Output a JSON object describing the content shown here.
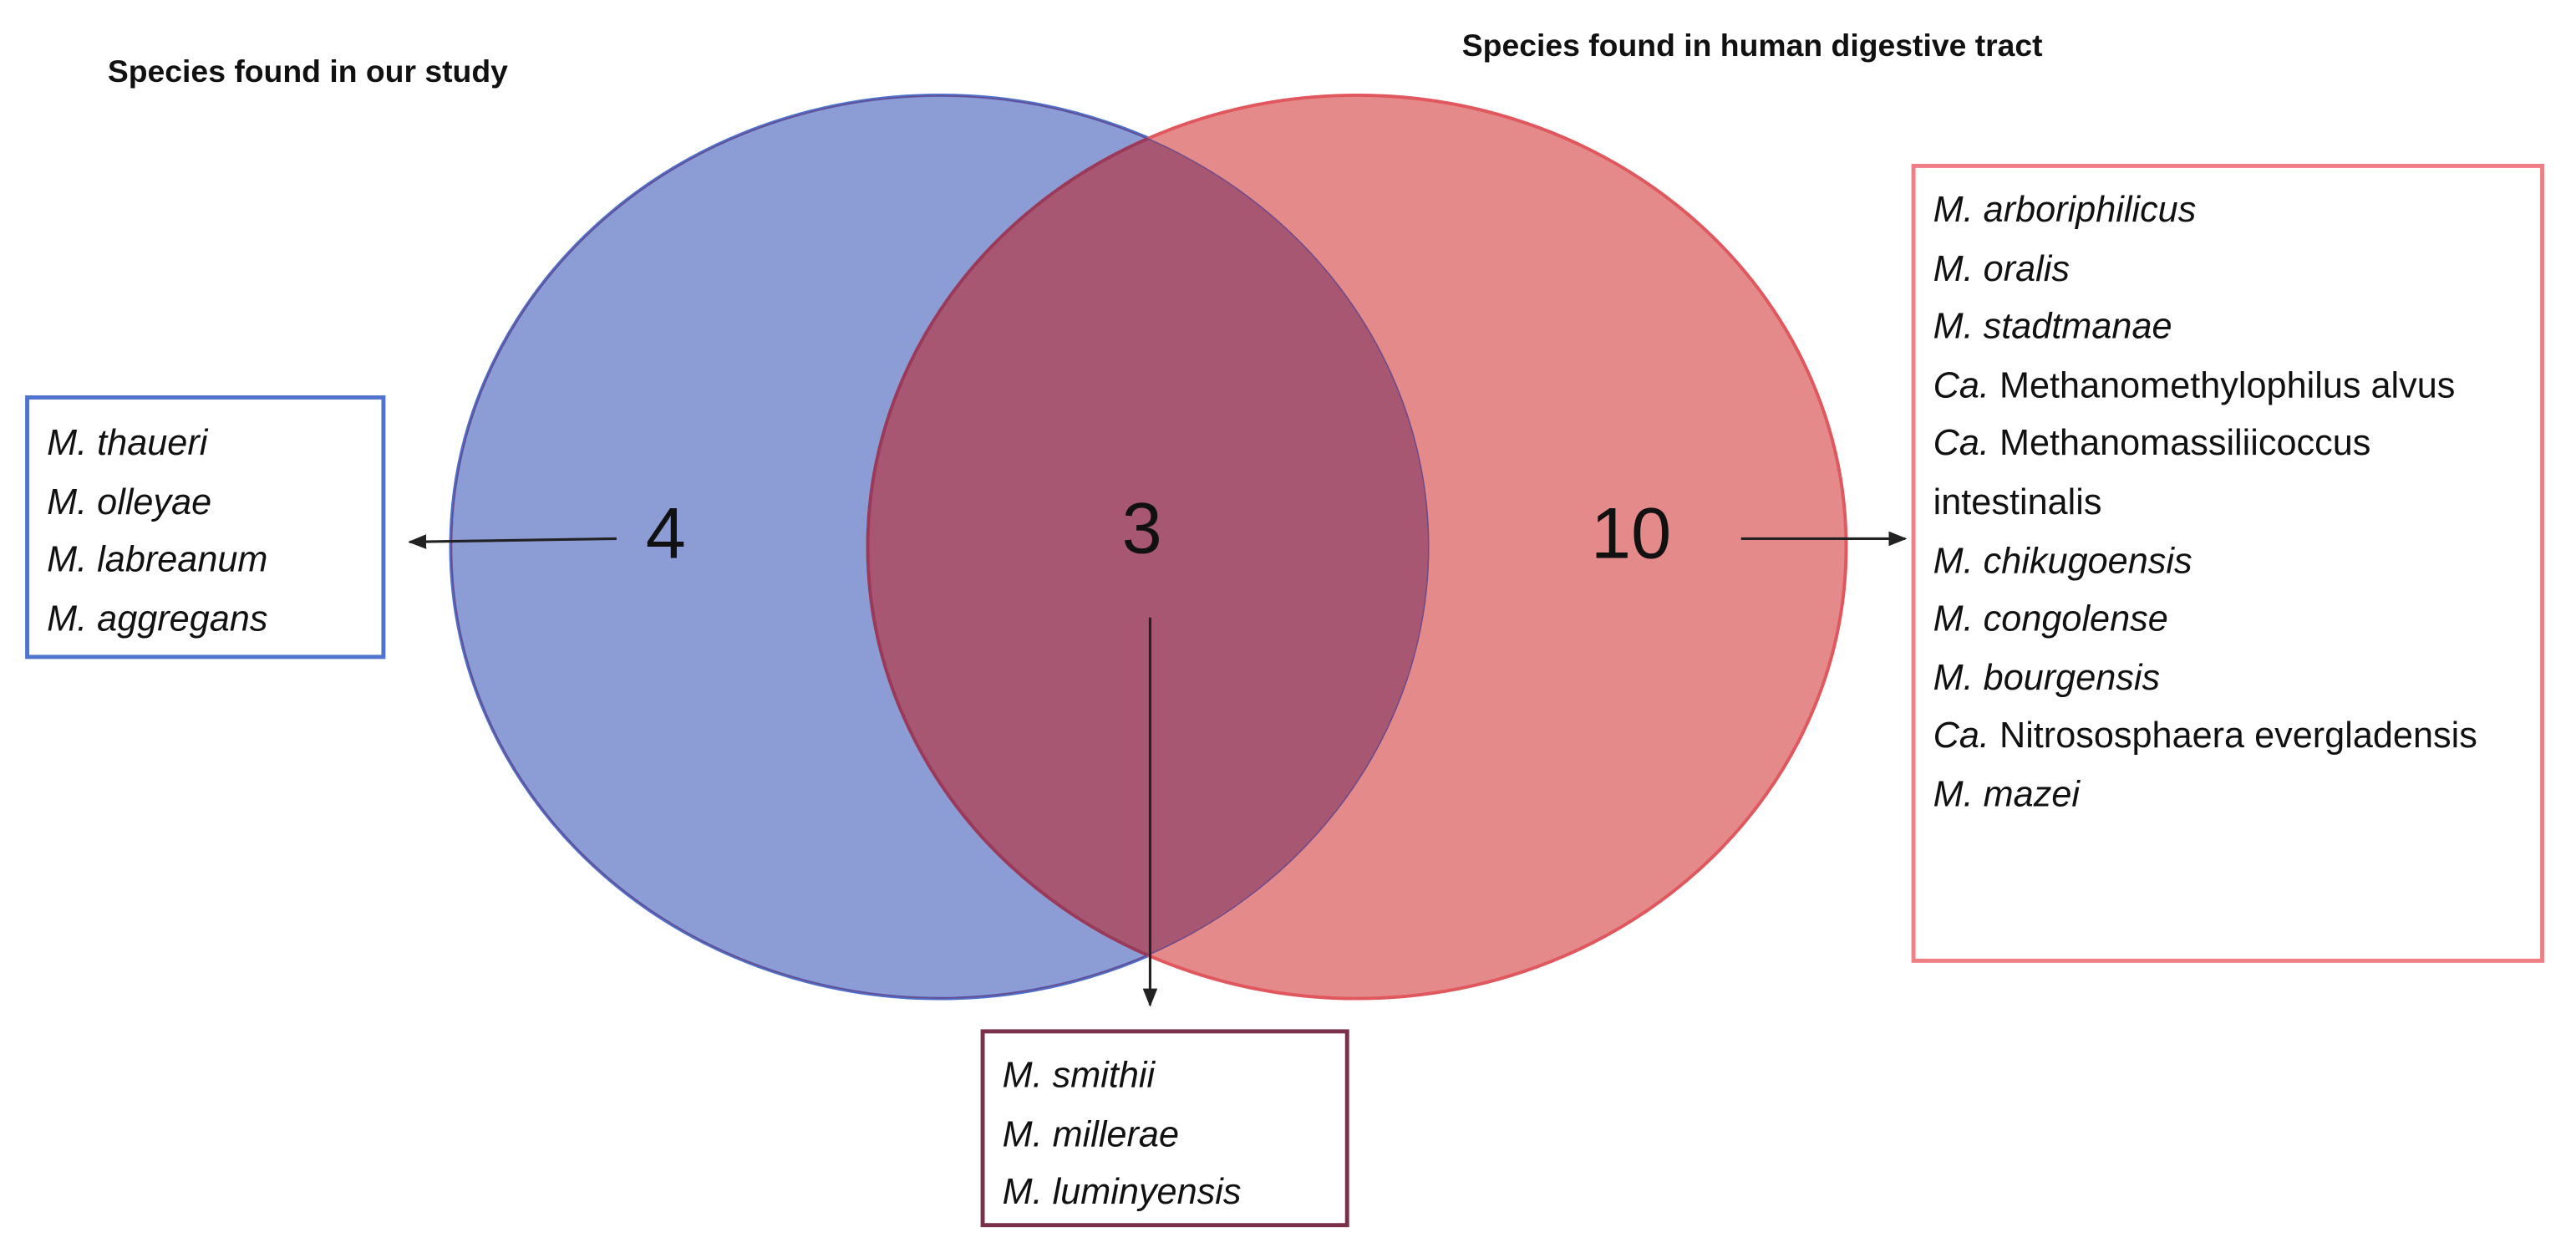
{
  "left_set": {
    "title": "Species found in our study",
    "count": 4,
    "species": [
      "M. thaueri",
      "M. olleyae",
      "M. labreanum",
      "M. aggregans"
    ]
  },
  "right_set": {
    "title": "Species found in human digestive tract",
    "count": 10,
    "species": [
      "M. arboriphilicus",
      "M. oralis",
      "M. stadtmanae",
      {
        "italic": "Ca.",
        "plain": "Methanomethylophilus alvus"
      },
      {
        "italic": "Ca.",
        "plain": "Methanomassiliicoccus intestinalis"
      },
      "M. chikugoensis",
      "M. congolense",
      "M. bourgensis",
      {
        "italic": "Ca.",
        "plain": "Nitrososphaera evergladensis"
      },
      "M. mazei"
    ]
  },
  "intersection": {
    "count": 3,
    "species": [
      "M. smithii",
      "M. millerae",
      "M. luminyensis"
    ]
  }
}
